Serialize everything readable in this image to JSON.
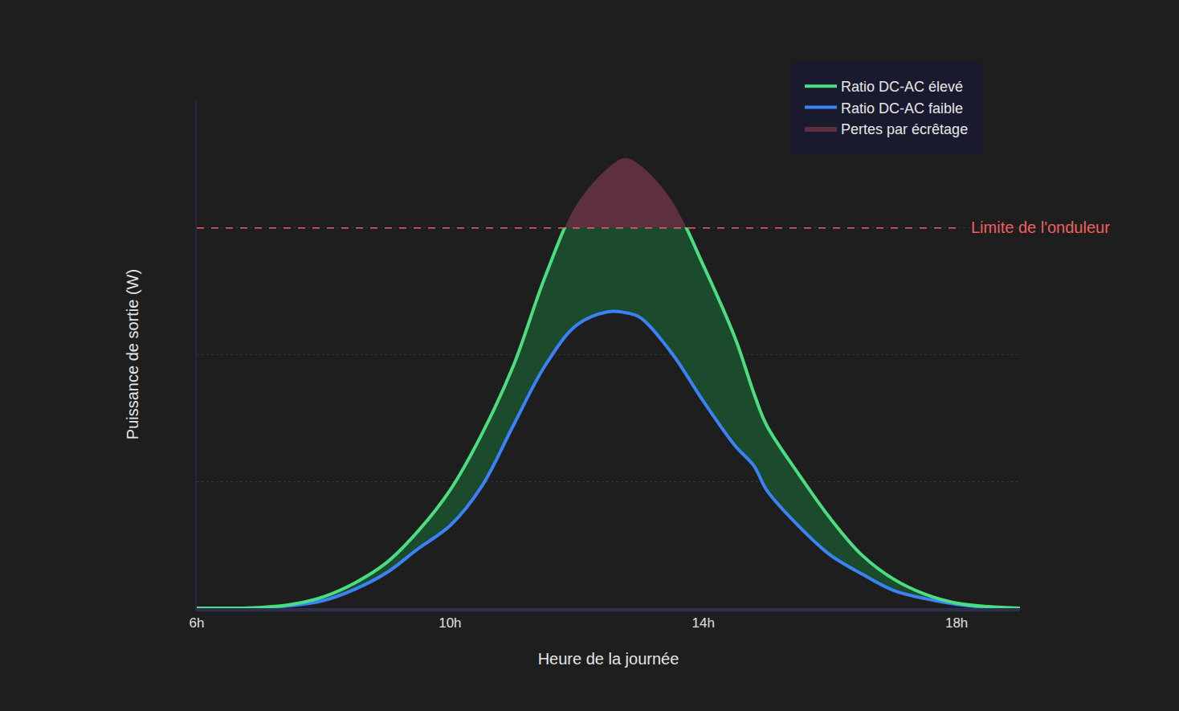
{
  "chart_data": {
    "type": "area",
    "x_label": "Heure de la journée",
    "y_label": "Puissance de sortie (W)",
    "x": [
      6,
      6.5,
      7,
      7.5,
      8,
      8.5,
      9,
      9.5,
      10,
      10.5,
      11,
      11.5,
      12,
      12.5,
      12.75,
      13,
      13.5,
      14,
      14.5,
      14.8,
      15,
      15.5,
      16,
      16.5,
      17,
      17.5,
      18,
      18.5,
      19
    ],
    "xlim": [
      6,
      19
    ],
    "xticks": [
      {
        "value": 6,
        "label": "6h"
      },
      {
        "value": 10,
        "label": "10h"
      },
      {
        "value": 14,
        "label": "14h"
      },
      {
        "value": 18,
        "label": "18h"
      }
    ],
    "ylim": [
      0,
      4000
    ],
    "yticks": [
      0,
      1000,
      2000,
      3000,
      4000
    ],
    "grid": true,
    "tick_labels": "x",
    "legend": "upper right",
    "series": [
      {
        "name": "Ratio DC-AC élevé",
        "color": "#4ade80",
        "values": [
          0,
          0,
          5,
          30,
          90,
          200,
          360,
          610,
          930,
          1370,
          1910,
          2610,
          3180,
          3470,
          3545,
          3490,
          3210,
          2700,
          2130,
          1690,
          1440,
          1060,
          710,
          420,
          230,
          110,
          40,
          12,
          0
        ]
      },
      {
        "name": "Ratio DC-AC faible",
        "color": "#3b82f6",
        "values": [
          0,
          0,
          3,
          20,
          60,
          150,
          280,
          470,
          650,
          960,
          1440,
          1910,
          2230,
          2335,
          2330,
          2290,
          2010,
          1630,
          1280,
          1120,
          930,
          650,
          420,
          270,
          140,
          75,
          30,
          6,
          0
        ]
      }
    ],
    "inverter_limit": {
      "value": 3000,
      "x": [
        6,
        18
      ],
      "label": "Limite de l'onduleur",
      "color": "#f06060",
      "line_style": "dashed"
    },
    "clipping_losses": {
      "name": "Pertes par écrêtage",
      "color": "#5e2f3e"
    },
    "fill_between": {
      "color": "#1b4a2c"
    }
  }
}
